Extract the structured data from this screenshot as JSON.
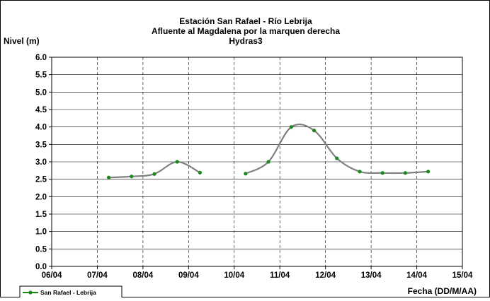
{
  "chart_data": {
    "type": "line",
    "title_lines": [
      "Estación San Rafael - Río Lebrija",
      "Afluente al Magdalena por la marquen derecha",
      "Hydras3"
    ],
    "ylabel": "Nivel (m)",
    "xlabel": "Fecha (DD/M/AA)",
    "ylim": [
      0,
      6
    ],
    "ytick_labels": [
      "0.0",
      "0.5",
      "1.0",
      "1.5",
      "2.0",
      "2.5",
      "3.0",
      "3.5",
      "4.0",
      "4.5",
      "5.0",
      "5.5",
      "6.0"
    ],
    "xlim": [
      0,
      9
    ],
    "xtick_labels": [
      "06/04",
      "07/04",
      "08/04",
      "09/04",
      "10/04",
      "11/04",
      "12/04",
      "13/04",
      "14/04",
      "15/04"
    ],
    "grid": true,
    "legend_position": "bottom-left",
    "series": [
      {
        "name": "San Rafael - Lebrija",
        "line_color": "#808080",
        "marker_color": "#1a8a1a",
        "segments": [
          [
            {
              "x": 1.25,
              "y": 2.55
            },
            {
              "x": 1.75,
              "y": 2.58
            },
            {
              "x": 2.25,
              "y": 2.65
            },
            {
              "x": 2.75,
              "y": 3.0
            },
            {
              "x": 3.25,
              "y": 2.69
            }
          ],
          [
            {
              "x": 4.25,
              "y": 2.66
            },
            {
              "x": 4.75,
              "y": 3.0
            },
            {
              "x": 5.25,
              "y": 4.0
            },
            {
              "x": 5.75,
              "y": 3.9
            },
            {
              "x": 6.25,
              "y": 3.1
            },
            {
              "x": 6.75,
              "y": 2.72
            },
            {
              "x": 7.25,
              "y": 2.68
            },
            {
              "x": 7.75,
              "y": 2.68
            },
            {
              "x": 8.25,
              "y": 2.72
            }
          ]
        ]
      }
    ]
  }
}
